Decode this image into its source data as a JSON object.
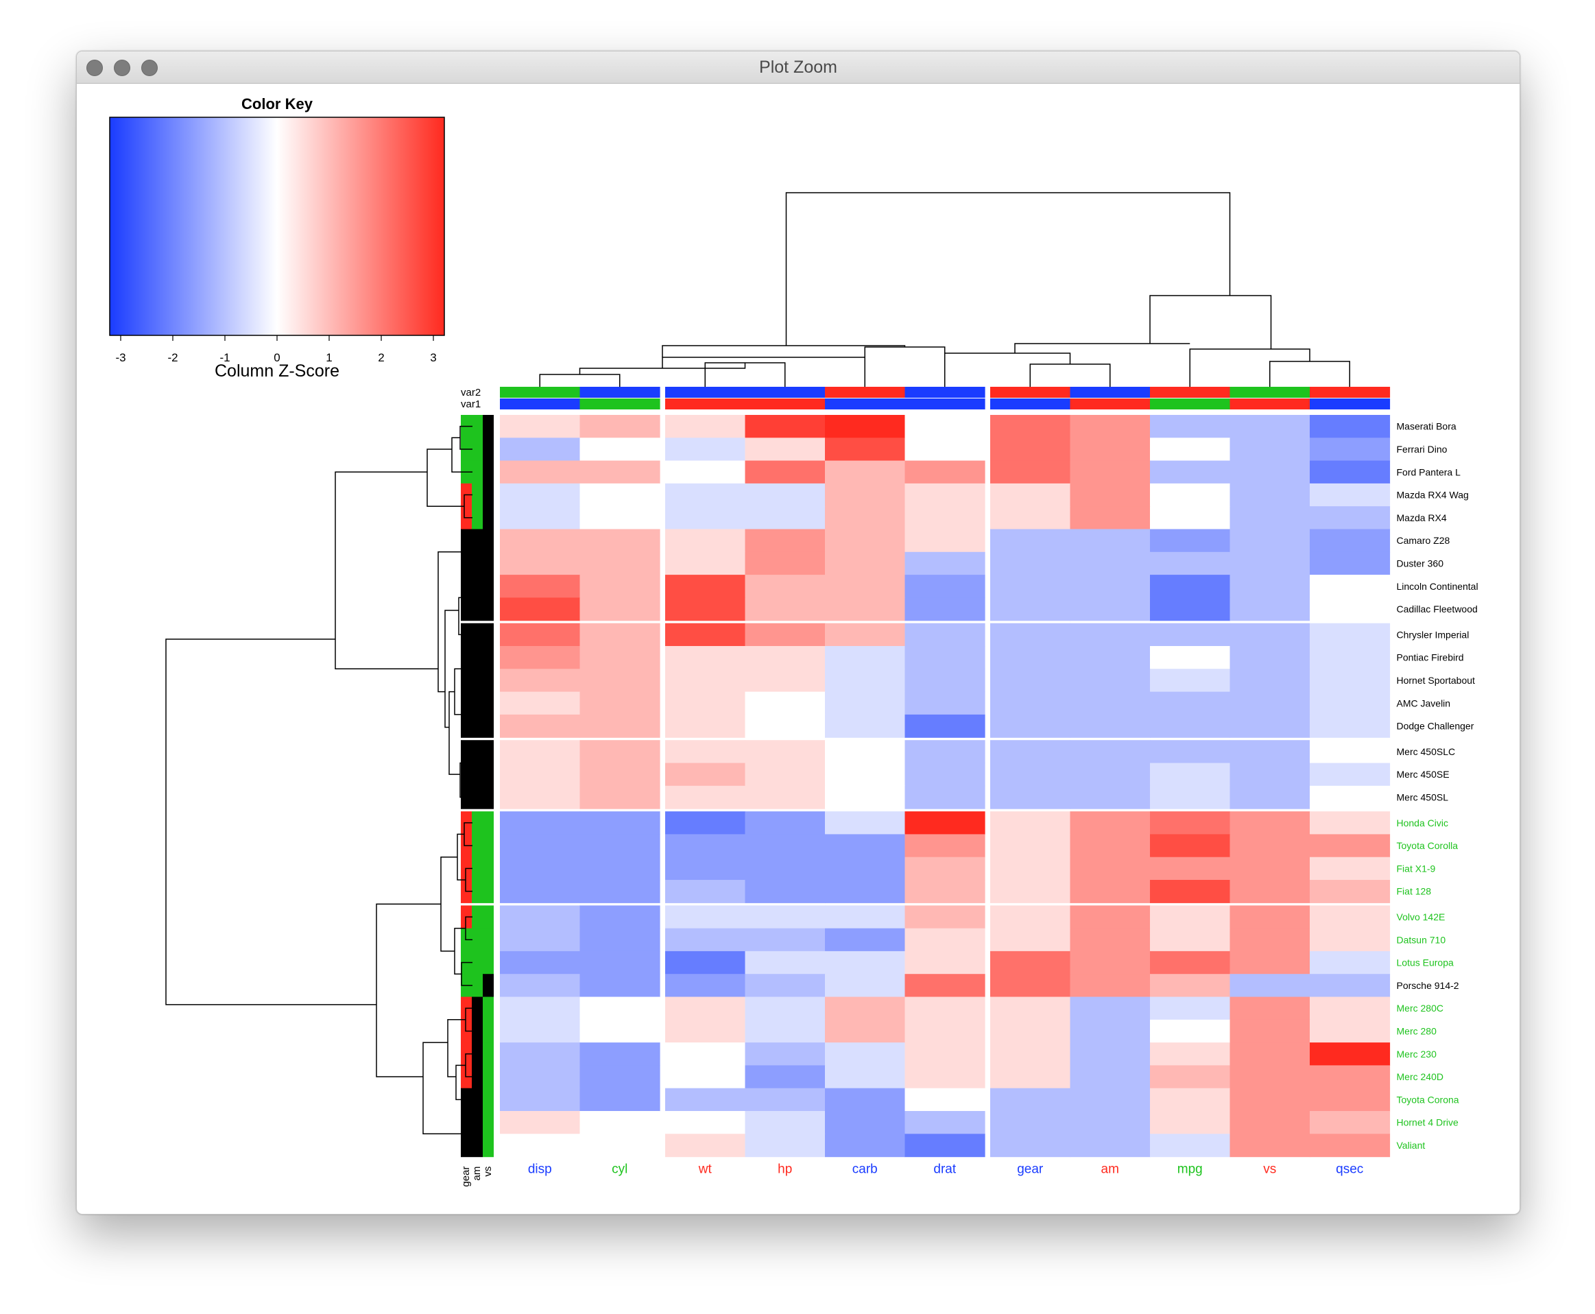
{
  "window": {
    "title": "Plot Zoom"
  },
  "color_key": {
    "title": "Color Key",
    "xlabel": "Column Z-Score",
    "ticks": [
      "-3",
      "-2",
      "-1",
      "0",
      "1",
      "2",
      "3"
    ],
    "low_color": "#1a3cff",
    "mid_color": "#ffffff",
    "high_color": "#ff2a1f"
  },
  "annotation_colors": {
    "red": "#ff2a1f",
    "green": "#1ec31e",
    "blue": "#1a3cff",
    "black": "#000000"
  },
  "chart_data": {
    "type": "heatmap",
    "columns": [
      "disp",
      "cyl",
      "wt",
      "hp",
      "carb",
      "drat",
      "gear",
      "am",
      "mpg",
      "vs",
      "qsec"
    ],
    "column_label_colors": [
      "blue",
      "green",
      "red",
      "red",
      "blue",
      "blue",
      "blue",
      "red",
      "green",
      "red",
      "blue"
    ],
    "column_annotations": {
      "labels": [
        "var2",
        "var1"
      ],
      "var2": [
        "green",
        "blue",
        "blue",
        "blue",
        "red",
        "blue",
        "red",
        "blue",
        "red",
        "green",
        "red"
      ],
      "var1": [
        "blue",
        "green",
        "red",
        "red",
        "blue",
        "blue",
        "blue",
        "red",
        "green",
        "red",
        "blue"
      ]
    },
    "rows": [
      "Maserati Bora",
      "Ferrari Dino",
      "Ford Pantera L",
      "Mazda RX4 Wag",
      "Mazda RX4",
      "Camaro Z28",
      "Duster 360",
      "Lincoln Continental",
      "Cadillac Fleetwood",
      "Chrysler Imperial",
      "Pontiac Firebird",
      "Hornet Sportabout",
      "AMC Javelin",
      "Dodge Challenger",
      "Merc 450SLC",
      "Merc 450SE",
      "Merc 450SL",
      "Honda Civic",
      "Toyota Corolla",
      "Fiat X1-9",
      "Fiat 128",
      "Volvo 142E",
      "Datsun 710",
      "Lotus Europa",
      "Porsche 914-2",
      "Merc 280C",
      "Merc 280",
      "Merc 230",
      "Merc 240D",
      "Toyota Corona",
      "Hornet 4 Drive",
      "Valiant"
    ],
    "row_label_colors": [
      "black",
      "black",
      "black",
      "black",
      "black",
      "black",
      "black",
      "black",
      "black",
      "black",
      "black",
      "black",
      "black",
      "black",
      "black",
      "black",
      "black",
      "green",
      "green",
      "green",
      "green",
      "green",
      "green",
      "green",
      "black",
      "green",
      "green",
      "green",
      "green",
      "green",
      "green",
      "green"
    ],
    "row_annotations": {
      "labels": [
        "gear",
        "am",
        "vs"
      ],
      "gear": [
        "green",
        "green",
        "green",
        "red",
        "red",
        "black",
        "black",
        "black",
        "black",
        "black",
        "black",
        "black",
        "black",
        "black",
        "black",
        "black",
        "black",
        "red",
        "red",
        "red",
        "red",
        "red",
        "green",
        "green",
        "green",
        "red",
        "red",
        "red",
        "red",
        "black",
        "black",
        "black"
      ],
      "am": [
        "green",
        "green",
        "green",
        "green",
        "green",
        "black",
        "black",
        "black",
        "black",
        "black",
        "black",
        "black",
        "black",
        "black",
        "black",
        "black",
        "black",
        "green",
        "green",
        "green",
        "green",
        "green",
        "green",
        "green",
        "green",
        "black",
        "black",
        "black",
        "black",
        "black",
        "black",
        "black"
      ],
      "vs": [
        "black",
        "black",
        "black",
        "black",
        "black",
        "black",
        "black",
        "black",
        "black",
        "black",
        "black",
        "black",
        "black",
        "black",
        "black",
        "black",
        "black",
        "green",
        "green",
        "green",
        "green",
        "green",
        "green",
        "green",
        "black",
        "green",
        "green",
        "green",
        "green",
        "green",
        "green",
        "green"
      ]
    },
    "column_gaps_after": [
      1,
      5
    ],
    "row_gaps_after": [
      8,
      13,
      16,
      20
    ],
    "zlim": [
      -3,
      3
    ],
    "z_scores": [
      [
        0.5,
        1,
        0.5,
        2.7,
        3,
        0,
        2,
        1.5,
        -1,
        -1,
        -2
      ],
      [
        -1,
        0,
        -0.5,
        0.5,
        2.5,
        0,
        2,
        1.5,
        0,
        -1,
        -1.5
      ],
      [
        1,
        1,
        0,
        2,
        1,
        1.5,
        2,
        1.5,
        -1,
        -1,
        -2
      ],
      [
        -0.5,
        0,
        -0.5,
        -0.5,
        1,
        0.5,
        0.5,
        1.5,
        0,
        -1,
        -0.5
      ],
      [
        -0.5,
        0,
        -0.5,
        -0.5,
        1,
        0.5,
        0.5,
        1.5,
        0,
        -1,
        -1
      ],
      [
        1,
        1,
        0.5,
        1.5,
        1,
        0.5,
        -1,
        -1,
        -1.5,
        -1,
        -1.5
      ],
      [
        1,
        1,
        0.5,
        1.5,
        1,
        -1,
        -1,
        -1,
        -1,
        -1,
        -1.5
      ],
      [
        2,
        1,
        2.5,
        1,
        1,
        -1.5,
        -1,
        -1,
        -2,
        -1,
        0
      ],
      [
        2.5,
        1,
        2.5,
        1,
        1,
        -1.5,
        -1,
        -1,
        -2,
        -1,
        0
      ],
      [
        2,
        1,
        2.5,
        1.5,
        1,
        -1,
        -1,
        -1,
        -1,
        -1,
        -0.5
      ],
      [
        1.5,
        1,
        0.5,
        0.5,
        -0.5,
        -1,
        -1,
        -1,
        0,
        -1,
        -0.5
      ],
      [
        1,
        1,
        0.5,
        0.5,
        -0.5,
        -1,
        -1,
        -1,
        -0.5,
        -1,
        -0.5
      ],
      [
        0.5,
        1,
        0.5,
        0,
        -0.5,
        -1,
        -1,
        -1,
        -1,
        -1,
        -0.5
      ],
      [
        1,
        1,
        0.5,
        0,
        -0.5,
        -2,
        -1,
        -1,
        -1,
        -1,
        -0.5
      ],
      [
        0.5,
        1,
        0.5,
        0.5,
        0,
        -1,
        -1,
        -1,
        -1,
        -1,
        0
      ],
      [
        0.5,
        1,
        1,
        0.5,
        0,
        -1,
        -1,
        -1,
        -0.5,
        -1,
        -0.5
      ],
      [
        0.5,
        1,
        0.5,
        0.5,
        0,
        -1,
        -1,
        -1,
        -0.5,
        -1,
        0
      ],
      [
        -1.5,
        -1.5,
        -2,
        -1.5,
        -0.5,
        3,
        0.5,
        1.5,
        2,
        1.5,
        0.5
      ],
      [
        -1.5,
        -1.5,
        -1.5,
        -1.5,
        -1.5,
        1.5,
        0.5,
        1.5,
        2.5,
        1.5,
        1.5
      ],
      [
        -1.5,
        -1.5,
        -1.5,
        -1.5,
        -1.5,
        1,
        0.5,
        1.5,
        1.5,
        1.5,
        0.5
      ],
      [
        -1.5,
        -1.5,
        -1,
        -1.5,
        -1.5,
        1,
        0.5,
        1.5,
        2.5,
        1.5,
        1
      ],
      [
        -1,
        -1.5,
        -0.5,
        -0.5,
        -0.5,
        1,
        0.5,
        1.5,
        0.5,
        1.5,
        0.5
      ],
      [
        -1,
        -1.5,
        -1,
        -1,
        -1.5,
        0.5,
        0.5,
        1.5,
        0.5,
        1.5,
        0.5
      ],
      [
        -1.5,
        -1.5,
        -2,
        -0.5,
        -0.5,
        0.5,
        2,
        1.5,
        2,
        1.5,
        -0.5
      ],
      [
        -1,
        -1.5,
        -1.5,
        -1,
        -0.5,
        2,
        2,
        1.5,
        1,
        -1,
        -1
      ],
      [
        -0.5,
        0,
        0.5,
        -0.5,
        1,
        0.5,
        0.5,
        -1,
        -0.5,
        1.5,
        0.5
      ],
      [
        -0.5,
        0,
        0.5,
        -0.5,
        1,
        0.5,
        0.5,
        -1,
        0,
        1.5,
        0.5
      ],
      [
        -1,
        -1.5,
        0,
        -1,
        -0.5,
        0.5,
        0.5,
        -1,
        0.5,
        1.5,
        3
      ],
      [
        -1,
        -1.5,
        0,
        -1.5,
        -0.5,
        0.5,
        0.5,
        -1,
        1,
        1.5,
        1.5
      ],
      [
        -1,
        -1.5,
        -1,
        -1,
        -1.5,
        0,
        -1,
        -1,
        0.5,
        1.5,
        1.5
      ],
      [
        0.5,
        0,
        0,
        -0.5,
        -1.5,
        -1,
        -1,
        -1,
        0.5,
        1.5,
        1
      ],
      [
        0,
        0,
        0.5,
        -0.5,
        -1.5,
        -2,
        -1,
        -1,
        -0.5,
        1.5,
        1.5
      ]
    ],
    "column_dendrogram_merges": [
      [
        -1,
        -2,
        0.2
      ],
      [
        -3,
        -4,
        0.45
      ],
      [
        -5,
        -6,
        0.85
      ],
      [
        2,
        3,
        1.4
      ],
      [
        1,
        4,
        1.85
      ],
      [
        -8,
        -9,
        0.45
      ],
      [
        -7,
        6,
        0.75
      ],
      [
        -11,
        7,
        1.45
      ],
      [
        -10,
        -11,
        0.0
      ],
      [
        -10,
        8,
        0.0
      ]
    ],
    "xlabel": "",
    "ylabel": ""
  }
}
